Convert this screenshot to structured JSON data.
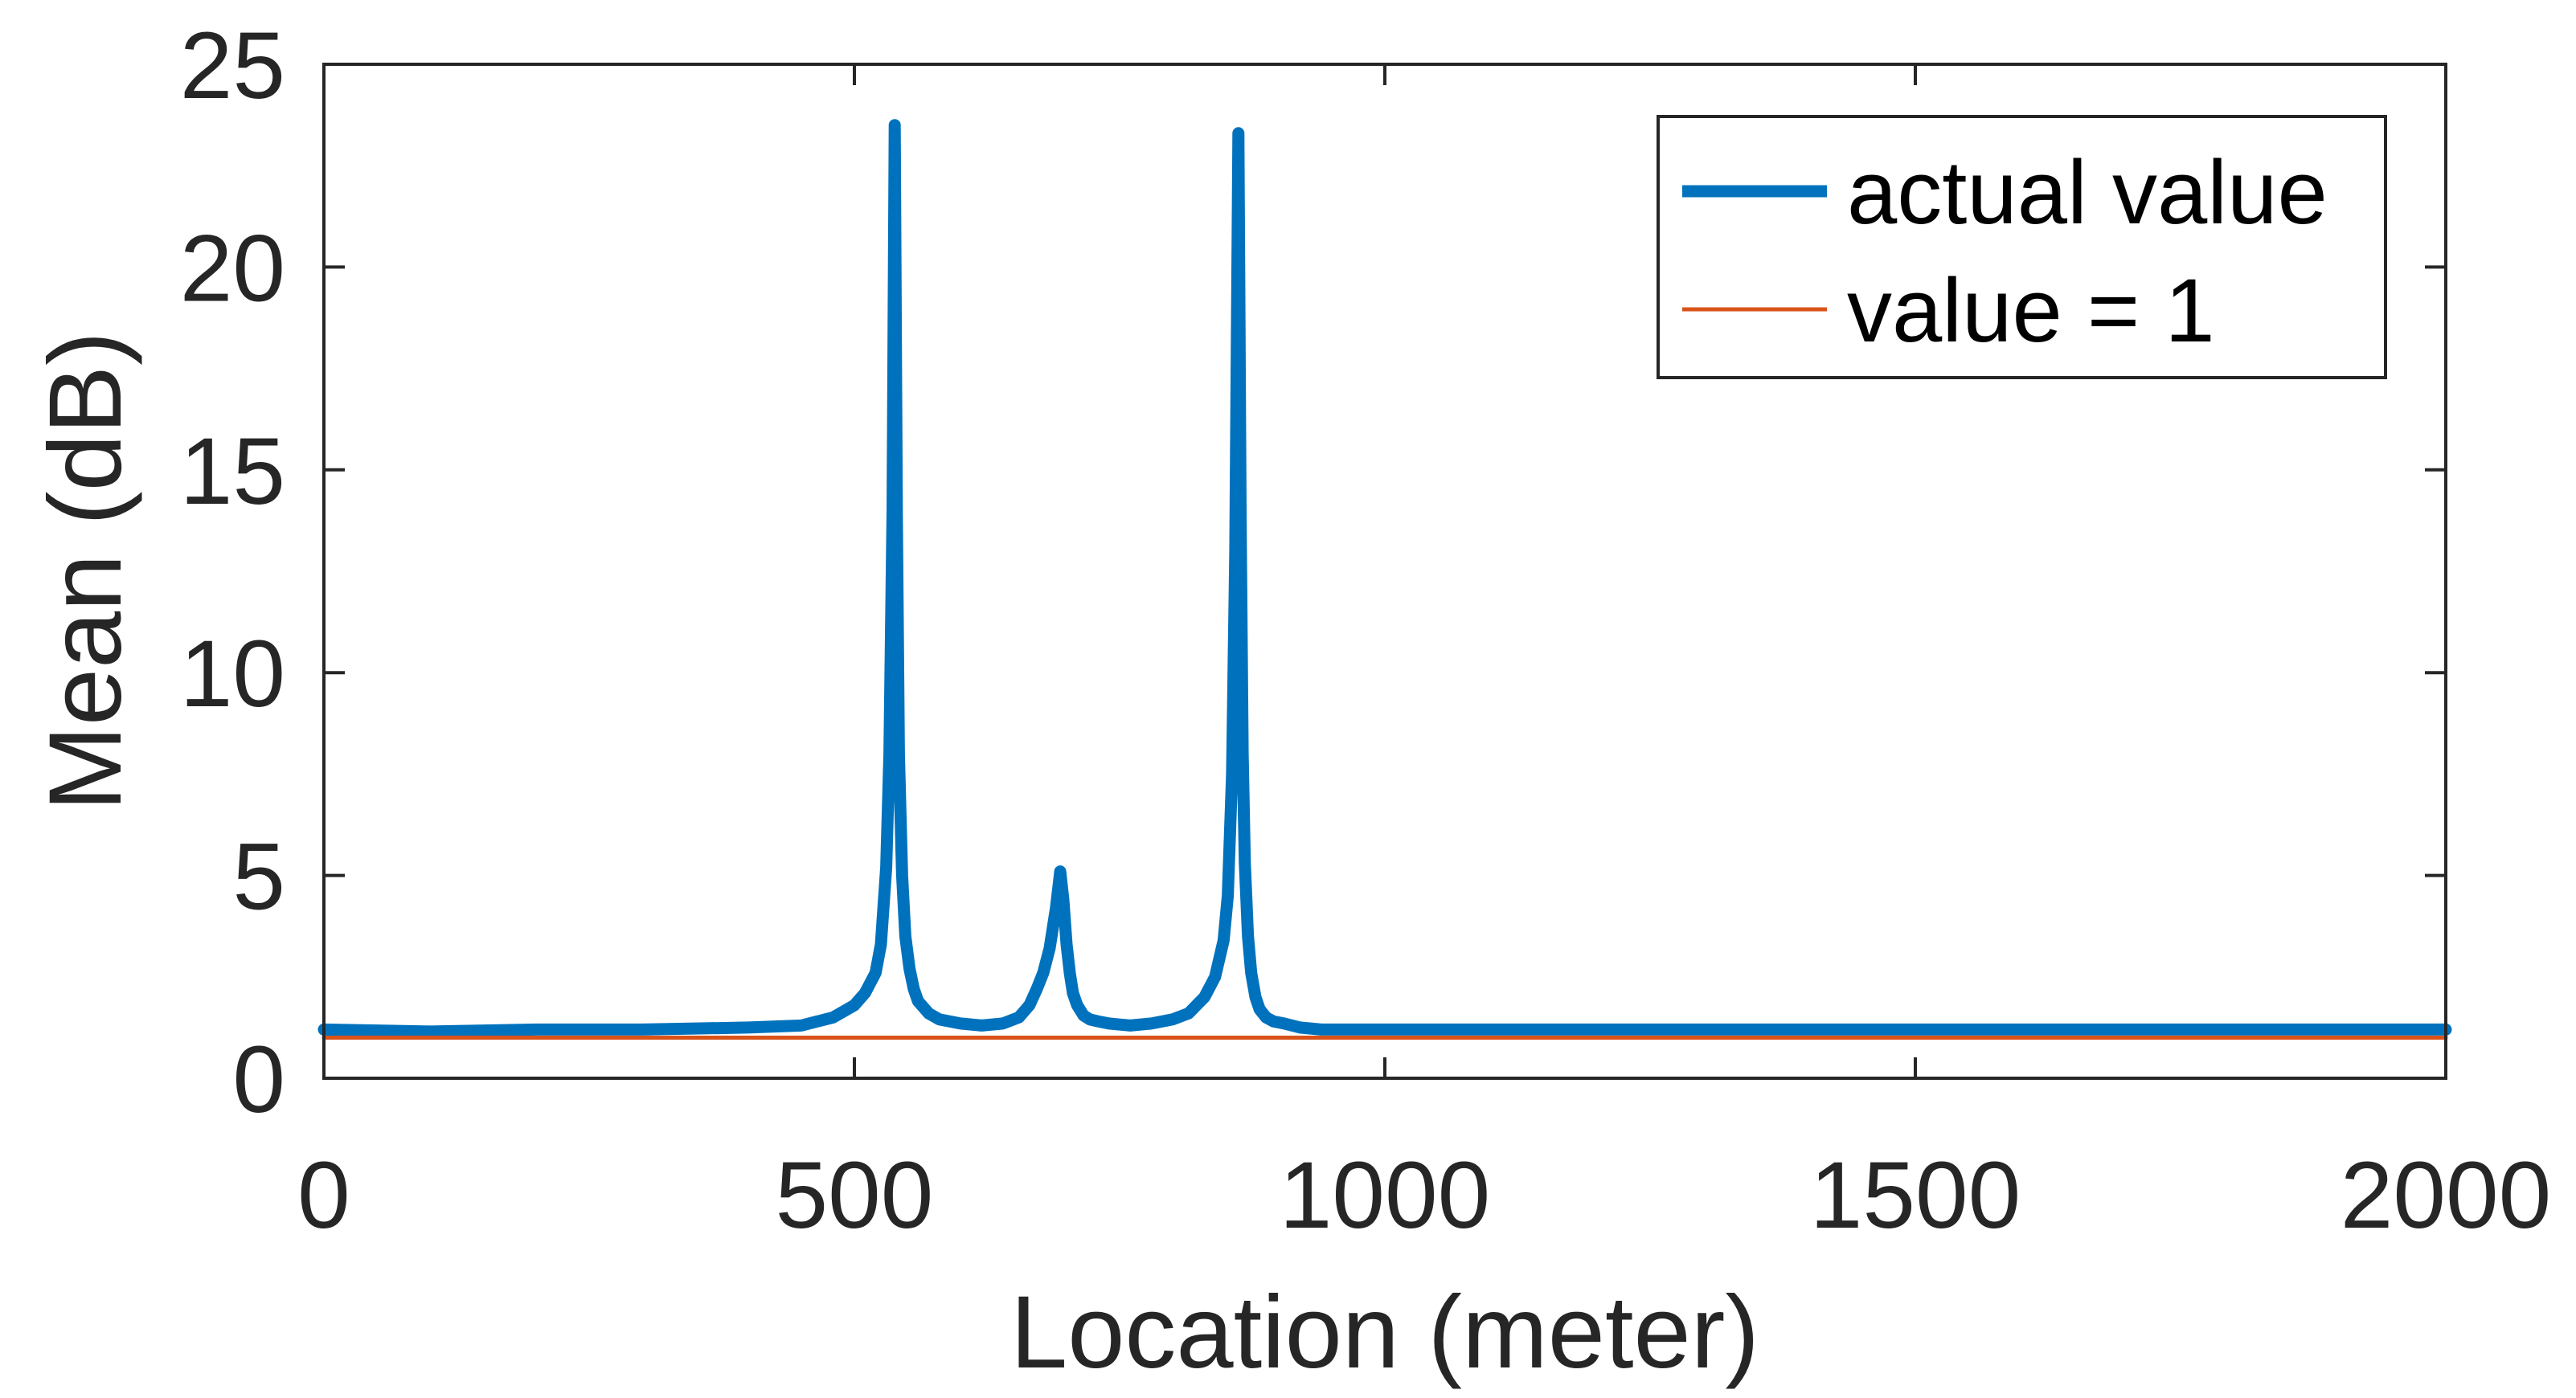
{
  "chart_data": {
    "type": "line",
    "xlabel": "Location (meter)",
    "ylabel": "Mean (dB)",
    "xlim": [
      0,
      2000
    ],
    "ylim": [
      0,
      25
    ],
    "xticks": [
      0,
      500,
      1000,
      1500,
      2000
    ],
    "yticks": [
      0,
      5,
      10,
      15,
      20,
      25
    ],
    "grid": false,
    "legend_position": "top-right",
    "series": [
      {
        "name": "actual value",
        "color": "#0072BD",
        "x": [
          0,
          100,
          200,
          300,
          400,
          450,
          480,
          500,
          510,
          520,
          525,
          530,
          533,
          536,
          538,
          540,
          542,
          545,
          548,
          552,
          556,
          560,
          570,
          580,
          600,
          620,
          640,
          655,
          665,
          672,
          678,
          684,
          690,
          694,
          697,
          700,
          703,
          706,
          710,
          716,
          722,
          730,
          740,
          760,
          780,
          800,
          815,
          830,
          840,
          848,
          852,
          856,
          859,
          862,
          864,
          866,
          868,
          871,
          874,
          878,
          882,
          888,
          895,
          905,
          920,
          940,
          970,
          1000,
          1100,
          1200,
          1300,
          1400,
          1500,
          1600,
          1700,
          1800,
          1900,
          2000
        ],
        "y": [
          1.2,
          1.15,
          1.2,
          1.2,
          1.25,
          1.3,
          1.5,
          1.8,
          2.1,
          2.6,
          3.3,
          5.2,
          8.0,
          14.0,
          23.5,
          14.0,
          8.0,
          5.0,
          3.5,
          2.7,
          2.2,
          1.9,
          1.6,
          1.45,
          1.35,
          1.3,
          1.35,
          1.5,
          1.8,
          2.2,
          2.6,
          3.2,
          4.2,
          5.1,
          4.4,
          3.3,
          2.6,
          2.1,
          1.8,
          1.55,
          1.45,
          1.4,
          1.35,
          1.3,
          1.35,
          1.45,
          1.6,
          2.0,
          2.5,
          3.4,
          4.5,
          7.5,
          13.0,
          23.3,
          14.0,
          8.0,
          5.3,
          3.5,
          2.6,
          2.0,
          1.7,
          1.5,
          1.4,
          1.35,
          1.25,
          1.2,
          1.2,
          1.2,
          1.2,
          1.2,
          1.2,
          1.2,
          1.2,
          1.2,
          1.2,
          1.2,
          1.2,
          1.2
        ]
      },
      {
        "name": "value = 1",
        "color": "#D95319",
        "x": [
          0,
          2000
        ],
        "y": [
          1,
          1
        ]
      }
    ]
  }
}
